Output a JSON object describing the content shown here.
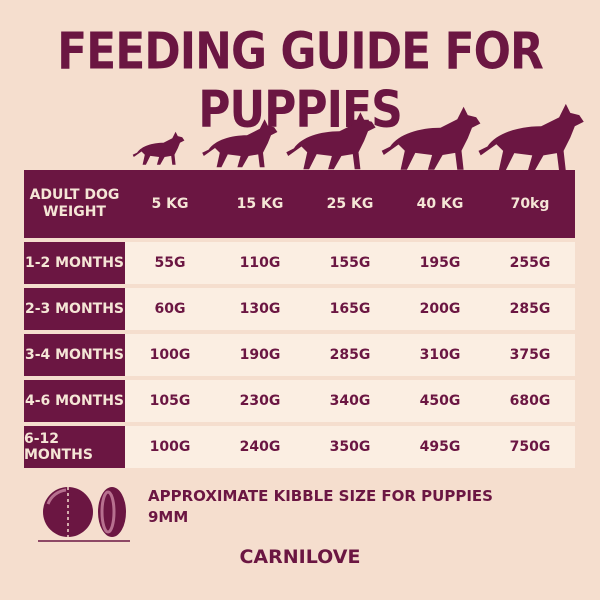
{
  "title": "FEEDING GUIDE FOR PUPPIES",
  "table": {
    "corner_label_line1": "ADULT DOG",
    "corner_label_line2": "WEIGHT",
    "weights": [
      "5 KG",
      "15 KG",
      "25 KG",
      "40 KG",
      "70kg"
    ],
    "rows": [
      {
        "age": "1-2 MONTHS",
        "values": [
          "55G",
          "110G",
          "155G",
          "195G",
          "255G"
        ]
      },
      {
        "age": "2-3 MONTHS",
        "values": [
          "60G",
          "130G",
          "165G",
          "200G",
          "285G"
        ]
      },
      {
        "age": "3-4 MONTHS",
        "values": [
          "100G",
          "190G",
          "285G",
          "310G",
          "375G"
        ]
      },
      {
        "age": "4-6 MONTHS",
        "values": [
          "105G",
          "230G",
          "340G",
          "450G",
          "680G"
        ]
      },
      {
        "age": "6-12 MONTHS",
        "values": [
          "100G",
          "240G",
          "350G",
          "495G",
          "750G"
        ]
      }
    ]
  },
  "kibble": {
    "line1": "APPROXIMATE KIBBLE SIZE FOR PUPPIES",
    "line2": "9MM"
  },
  "brand": "CARNILOVE",
  "colors": {
    "primary": "#6b1642",
    "background": "#f5dece",
    "cell": "#fbeee2"
  },
  "icons": [
    "dog-silhouette-icon",
    "kibble-icon"
  ]
}
